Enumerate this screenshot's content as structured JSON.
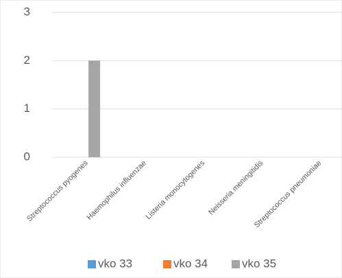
{
  "chart_data": {
    "type": "bar",
    "title": "",
    "xlabel": "",
    "ylabel": "",
    "categories": [
      "Streptococcus pyogenes",
      "Haemophilus influenzae",
      "Listeria monocytogenes",
      "Neisseria meningitidis",
      "Streptococcus pneumoniae"
    ],
    "series": [
      {
        "name": "vko 33",
        "color": "#5B9BD5",
        "values": [
          0,
          0,
          0,
          0,
          0
        ]
      },
      {
        "name": "vko 34",
        "color": "#ED7D31",
        "values": [
          0,
          0,
          0,
          0,
          0
        ]
      },
      {
        "name": "vko 35",
        "color": "#A5A5A5",
        "values": [
          2,
          0,
          0,
          0,
          0
        ]
      }
    ],
    "ylim": [
      0,
      3
    ],
    "yticks": [
      "0",
      "1",
      "2",
      "3"
    ],
    "grid": true,
    "legend_position": "bottom"
  }
}
